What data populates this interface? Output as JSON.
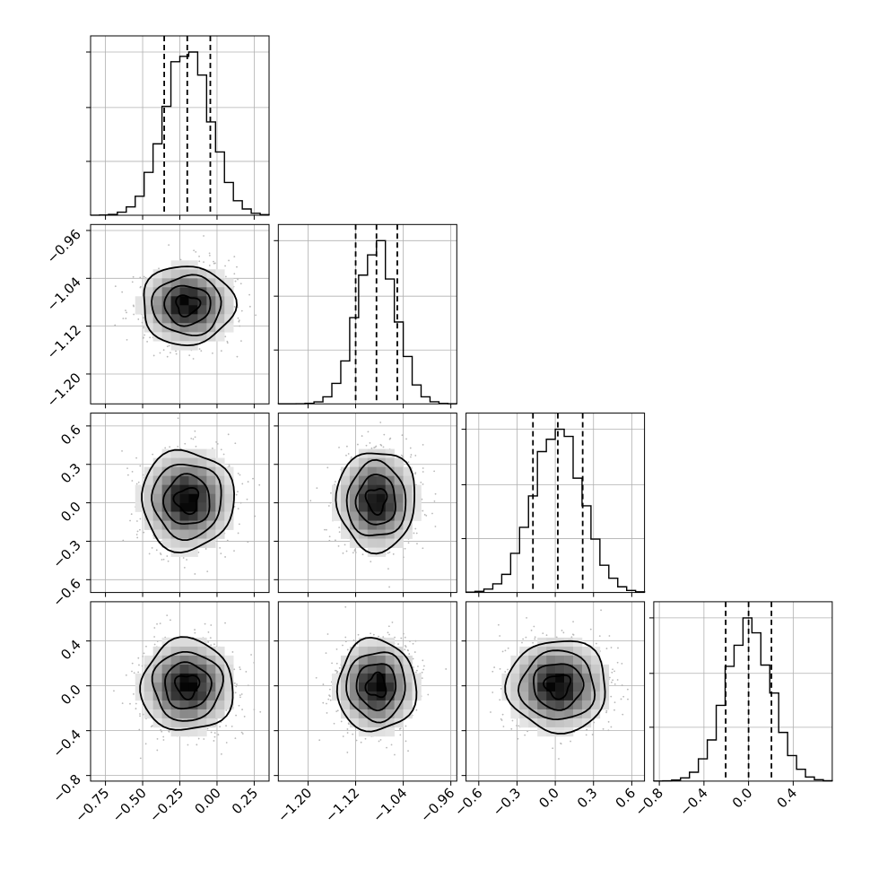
{
  "chart_data": {
    "type": "corner",
    "grid": true,
    "parameters": [
      {
        "range": [
          -0.85,
          0.35
        ],
        "ticks": [
          -0.75,
          -0.5,
          -0.25,
          0.0,
          0.25
        ],
        "tick_labels": [
          "−0.75",
          "−0.50",
          "−0.25",
          "0.00",
          "0.25"
        ],
        "mean": -0.2,
        "sigma": 0.155,
        "quantiles": [
          -0.355,
          -0.2,
          -0.045
        ]
      },
      {
        "range": [
          -1.25,
          -0.95
        ],
        "ticks": [
          -1.2,
          -1.12,
          -1.04,
          -0.96
        ],
        "tick_labels": [
          "−1.20",
          "−1.12",
          "−1.04",
          "−0.96"
        ],
        "mean": -1.085,
        "sigma": 0.033,
        "quantiles": [
          -1.12,
          -1.085,
          -1.05
        ]
      },
      {
        "range": [
          -0.7,
          0.7
        ],
        "ticks": [
          -0.6,
          -0.3,
          0.0,
          0.3,
          0.6
        ],
        "tick_labels": [
          "−0.6",
          "−0.3",
          "0.0",
          "0.3",
          "0.6"
        ],
        "mean": 0.02,
        "sigma": 0.195,
        "quantiles": [
          -0.175,
          0.02,
          0.215
        ]
      },
      {
        "range": [
          -0.85,
          0.75
        ],
        "ticks": [
          -0.8,
          -0.4,
          0.0,
          0.4
        ],
        "tick_labels": [
          "−0.8",
          "−0.4",
          "0.0",
          "0.4"
        ],
        "mean": 0.0,
        "sigma": 0.205,
        "quantiles": [
          -0.205,
          0.0,
          0.205
        ]
      }
    ],
    "histogram_bins": 20,
    "contour_levels_sigma": [
      0.5,
      1.0,
      1.5,
      2.0
    ],
    "colors": {
      "points": "#b8b8b8",
      "lines": "#000000",
      "grid": "#b0b0b0"
    }
  }
}
